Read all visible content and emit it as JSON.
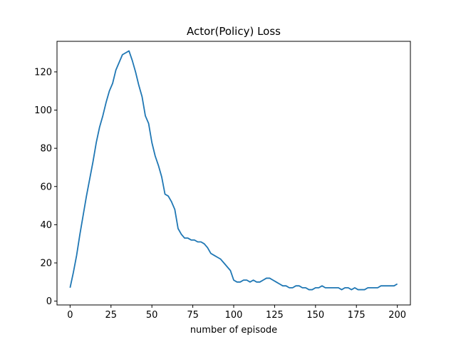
{
  "chart_data": {
    "type": "line",
    "title": "Actor(Policy) Loss",
    "xlabel": "number of episode",
    "ylabel": "",
    "xlim": [
      -8,
      208
    ],
    "ylim": [
      -2,
      136
    ],
    "xticks": [
      0,
      25,
      50,
      75,
      100,
      125,
      150,
      175,
      200
    ],
    "yticks": [
      0,
      20,
      40,
      60,
      80,
      100,
      120
    ],
    "grid": false,
    "series": [
      {
        "color": "#1f77b4",
        "x": [
          0,
          2,
          4,
          6,
          8,
          10,
          12,
          14,
          16,
          18,
          20,
          22,
          24,
          26,
          28,
          30,
          32,
          34,
          36,
          38,
          40,
          42,
          44,
          46,
          48,
          50,
          52,
          54,
          56,
          58,
          60,
          62,
          64,
          66,
          68,
          70,
          72,
          74,
          76,
          78,
          80,
          82,
          84,
          86,
          88,
          90,
          92,
          94,
          96,
          98,
          100,
          102,
          104,
          106,
          108,
          110,
          112,
          114,
          116,
          118,
          120,
          122,
          124,
          126,
          128,
          130,
          132,
          134,
          136,
          138,
          140,
          142,
          144,
          146,
          148,
          150,
          152,
          154,
          156,
          158,
          160,
          162,
          164,
          166,
          168,
          170,
          172,
          174,
          176,
          178,
          180,
          182,
          184,
          186,
          188,
          190,
          192,
          194,
          196,
          198,
          200
        ],
        "y": [
          7,
          15,
          24,
          35,
          45,
          55,
          64,
          73,
          83,
          91,
          97,
          104,
          110,
          114,
          121,
          125,
          129,
          130,
          131,
          126,
          120,
          113,
          107,
          97,
          93,
          83,
          76,
          71,
          65,
          56,
          55,
          52,
          48,
          38,
          35,
          33,
          33,
          32,
          32,
          31,
          31,
          30,
          28,
          25,
          24,
          23,
          22,
          20,
          18,
          16,
          11,
          10,
          10,
          11,
          11,
          10,
          11,
          10,
          10,
          11,
          12,
          12,
          11,
          10,
          9,
          8,
          8,
          7,
          7,
          8,
          8,
          7,
          7,
          6,
          6,
          7,
          7,
          8,
          7,
          7,
          7,
          7,
          7,
          6,
          7,
          7,
          6,
          7,
          6,
          6,
          6,
          7,
          7,
          7,
          7,
          8,
          8,
          8,
          8,
          8,
          9
        ]
      }
    ]
  }
}
